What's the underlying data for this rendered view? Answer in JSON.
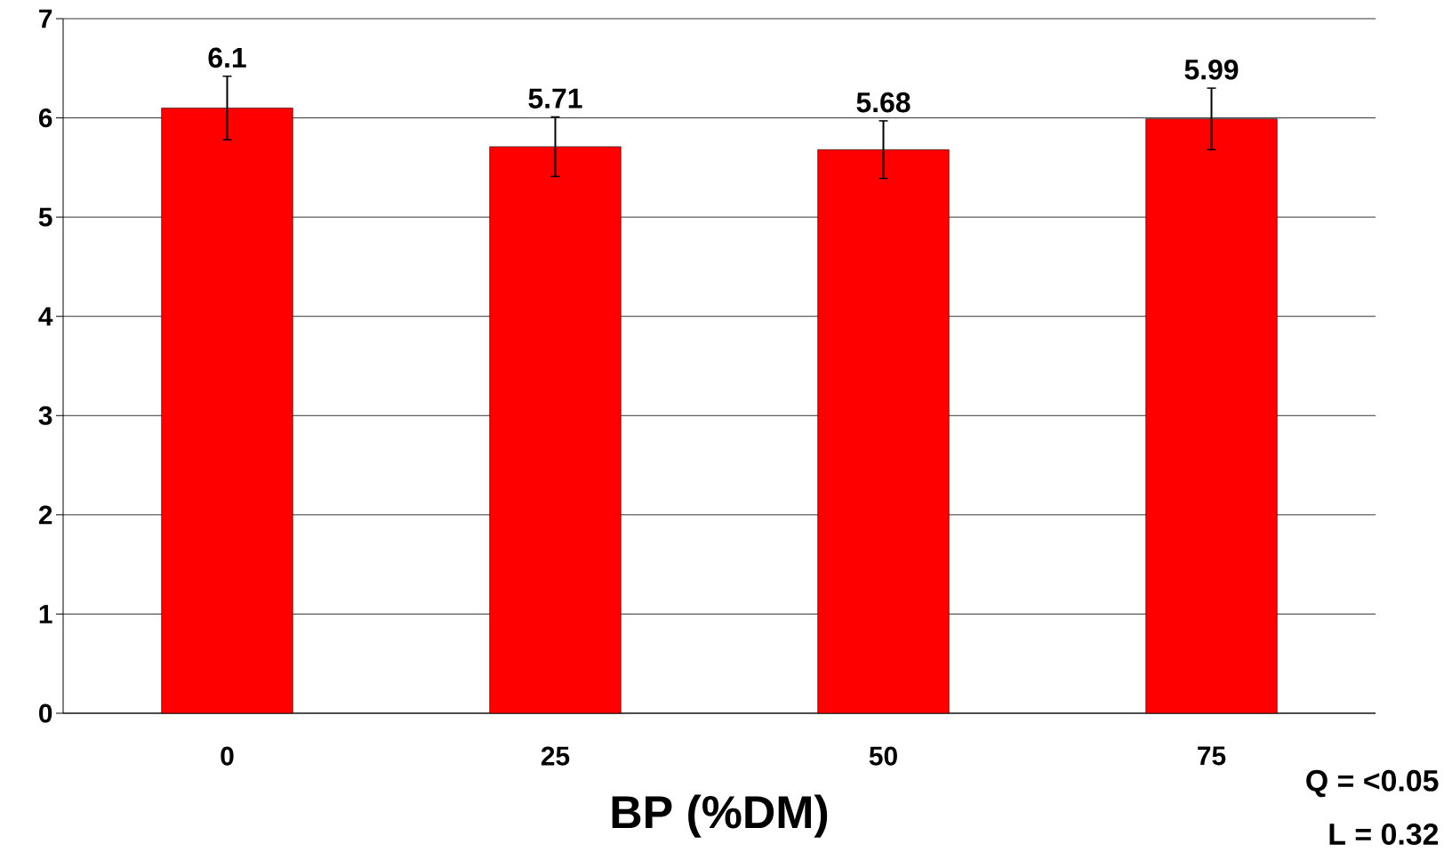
{
  "chart_data": {
    "type": "bar",
    "xlabel": "BP (%DM)",
    "categories": [
      "0",
      "25",
      "50",
      "75"
    ],
    "values": [
      6.1,
      5.71,
      5.68,
      5.99
    ],
    "errors": [
      0.32,
      0.3,
      0.29,
      0.31
    ],
    "color": "#ff0000",
    "ylim": [
      0,
      7
    ],
    "yticks": [
      0,
      1,
      2,
      3,
      4,
      5,
      6,
      7
    ],
    "grid": "y",
    "data_labels": true,
    "annotations": [
      "Q = <0.05",
      "L = 0.32"
    ]
  }
}
